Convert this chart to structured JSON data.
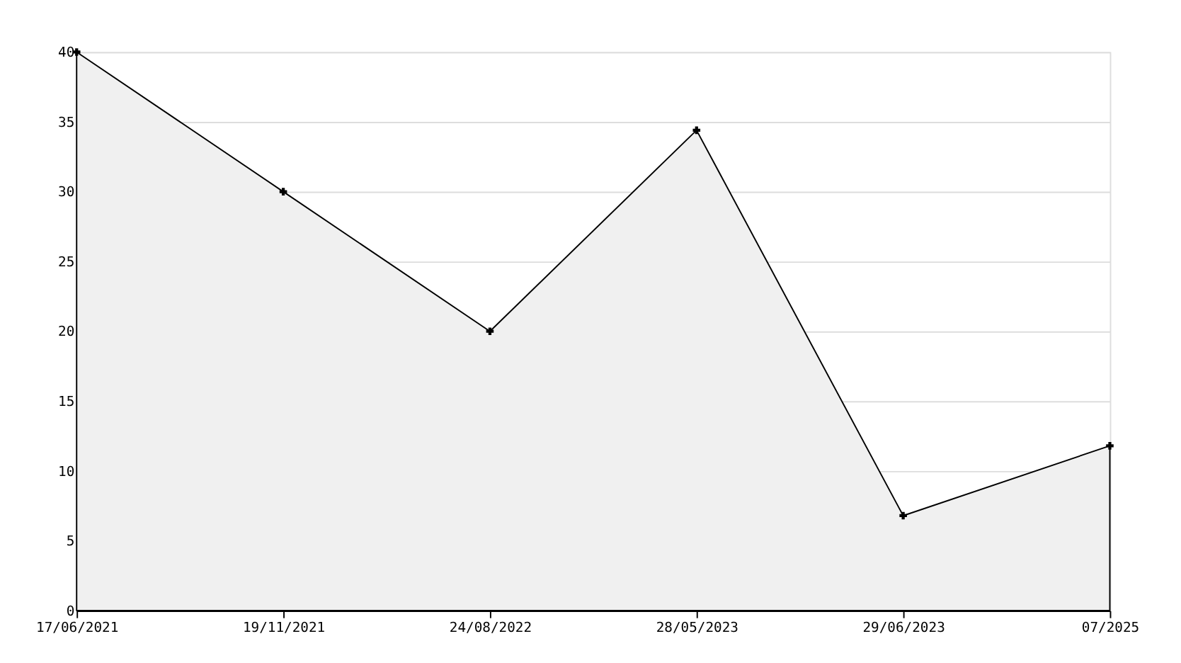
{
  "chart_data": {
    "type": "area",
    "categories": [
      "17/06/2021",
      "19/11/2021",
      "24/08/2022",
      "28/05/2023",
      "29/06/2023",
      "07/2025"
    ],
    "series": [
      {
        "color": "#000000",
        "values": [
          40,
          30,
          20,
          34.4,
          6.8,
          11.8
        ]
      }
    ],
    "ylim": [
      0,
      40
    ],
    "yticks": [
      0,
      5,
      10,
      15,
      20,
      25,
      30,
      35,
      40
    ],
    "grid": "y",
    "marker": "cross",
    "line_style": "solid"
  }
}
